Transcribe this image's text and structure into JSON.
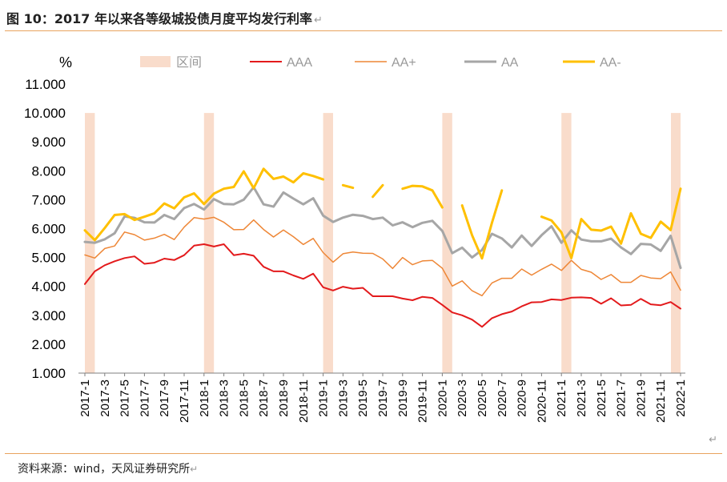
{
  "header": {
    "title": "图 10：2017 年以来各等级城投债月度平均发行利率",
    "return_mark": "↵"
  },
  "footer": {
    "source": "资料来源：wind，天风证券研究所",
    "return_mark": "↵",
    "corner_mark": "↵"
  },
  "chart_data": {
    "type": "line",
    "title": "2017 年以来各等级城投债月度平均发行利率",
    "ylabel": "%",
    "ylim": [
      1.0,
      11.0
    ],
    "yticks": [
      "11.000",
      "10.000",
      "9.000",
      "8.000",
      "7.000",
      "6.000",
      "5.000",
      "4.000",
      "3.000",
      "2.000",
      "1.000"
    ],
    "categories": [
      "2017-1",
      "2017-2",
      "2017-3",
      "2017-4",
      "2017-5",
      "2017-6",
      "2017-7",
      "2017-8",
      "2017-9",
      "2017-10",
      "2017-11",
      "2017-12",
      "2018-1",
      "2018-2",
      "2018-3",
      "2018-4",
      "2018-5",
      "2018-6",
      "2018-7",
      "2018-8",
      "2018-9",
      "2018-10",
      "2018-11",
      "2018-12",
      "2019-1",
      "2019-2",
      "2019-3",
      "2019-4",
      "2019-5",
      "2019-6",
      "2019-7",
      "2019-8",
      "2019-9",
      "2019-10",
      "2019-11",
      "2019-12",
      "2020-1",
      "2020-2",
      "2020-3",
      "2020-4",
      "2020-5",
      "2020-6",
      "2020-7",
      "2020-8",
      "2020-9",
      "2020-10",
      "2020-11",
      "2020-12",
      "2021-1",
      "2021-2",
      "2021-3",
      "2021-4",
      "2021-5",
      "2021-6",
      "2021-7",
      "2021-8",
      "2021-9",
      "2021-10",
      "2021-11",
      "2021-12",
      "2022-1"
    ],
    "xtick_labels": [
      "2017-1",
      "2017-3",
      "2017-5",
      "2017-7",
      "2017-9",
      "2017-11",
      "2018-1",
      "2018-3",
      "2018-5",
      "2018-7",
      "2018-9",
      "2018-11",
      "2019-1",
      "2019-3",
      "2019-5",
      "2019-7",
      "2019-9",
      "2019-11",
      "2020-1",
      "2020-3",
      "2020-5",
      "2020-7",
      "2020-9",
      "2020-11",
      "2021-1",
      "2021-3",
      "2021-5",
      "2021-7",
      "2021-9",
      "2021-11",
      "2022-1"
    ],
    "intervals": {
      "name": "区间",
      "color": "#f9dccb",
      "ranges": [
        [
          "2017-1",
          "2017-2"
        ],
        [
          "2018-1",
          "2018-2"
        ],
        [
          "2019-1",
          "2019-2"
        ],
        [
          "2020-1",
          "2020-2"
        ],
        [
          "2021-1",
          "2021-2"
        ],
        [
          "2022-1",
          "2022-1"
        ]
      ]
    },
    "series": [
      {
        "name": "AAA",
        "color": "#e31a1c",
        "width": 2,
        "values": [
          4.08,
          4.52,
          4.73,
          4.87,
          4.98,
          5.04,
          4.78,
          4.82,
          4.96,
          4.91,
          5.08,
          5.41,
          5.46,
          5.38,
          5.46,
          5.08,
          5.13,
          5.06,
          4.68,
          4.52,
          4.52,
          4.38,
          4.26,
          4.44,
          3.97,
          3.86,
          3.99,
          3.92,
          3.95,
          3.66,
          3.66,
          3.66,
          3.58,
          3.52,
          3.64,
          3.6,
          3.36,
          3.1,
          3.0,
          2.85,
          2.6,
          2.9,
          3.04,
          3.13,
          3.31,
          3.45,
          3.46,
          3.55,
          3.53,
          3.61,
          3.62,
          3.6,
          3.4,
          3.59,
          3.34,
          3.36,
          3.57,
          3.38,
          3.35,
          3.46,
          3.23
        ]
      },
      {
        "name": "AA+",
        "color": "#ee8737",
        "width": 1.5,
        "values": [
          5.09,
          4.98,
          5.31,
          5.4,
          5.88,
          5.79,
          5.6,
          5.67,
          5.8,
          5.62,
          6.05,
          6.38,
          6.33,
          6.39,
          6.22,
          5.96,
          5.97,
          6.3,
          5.97,
          5.71,
          5.95,
          5.72,
          5.45,
          5.66,
          5.17,
          4.84,
          5.13,
          5.19,
          5.15,
          5.14,
          4.95,
          4.62,
          5.0,
          4.75,
          4.88,
          4.9,
          4.63,
          4.01,
          4.19,
          3.85,
          3.68,
          4.12,
          4.28,
          4.28,
          4.6,
          4.39,
          4.59,
          4.77,
          4.55,
          4.9,
          4.59,
          4.49,
          4.24,
          4.41,
          4.14,
          4.14,
          4.38,
          4.29,
          4.27,
          4.5,
          3.87
        ]
      },
      {
        "name": "AA",
        "color": "#a6a6a6",
        "width": 3,
        "values": [
          5.54,
          5.51,
          5.63,
          5.84,
          6.42,
          6.37,
          6.22,
          6.21,
          6.47,
          6.33,
          6.71,
          6.85,
          6.66,
          7.02,
          6.85,
          6.84,
          7.0,
          7.43,
          6.84,
          6.76,
          7.25,
          7.04,
          6.84,
          7.05,
          6.45,
          6.23,
          6.38,
          6.48,
          6.44,
          6.33,
          6.38,
          6.11,
          6.22,
          6.05,
          6.2,
          6.27,
          5.92,
          5.15,
          5.34,
          5.0,
          5.26,
          5.82,
          5.66,
          5.35,
          5.76,
          5.4,
          5.77,
          6.08,
          5.51,
          5.94,
          5.62,
          5.56,
          5.56,
          5.65,
          5.35,
          5.12,
          5.47,
          5.45,
          5.23,
          5.75,
          4.64
        ]
      },
      {
        "name": "AA-",
        "color": "#ffc000",
        "width": 3,
        "values": [
          5.94,
          5.6,
          6.02,
          6.47,
          6.5,
          6.3,
          6.41,
          6.53,
          6.87,
          6.7,
          7.08,
          7.22,
          6.85,
          7.21,
          7.38,
          7.44,
          7.98,
          7.4,
          8.07,
          7.72,
          7.8,
          7.6,
          7.91,
          7.82,
          7.7,
          null,
          7.5,
          7.41,
          null,
          7.1,
          7.5,
          null,
          7.38,
          7.48,
          7.46,
          7.32,
          6.73,
          null,
          6.8,
          5.77,
          4.97,
          6.2,
          7.32,
          null,
          null,
          null,
          6.41,
          6.28,
          5.87,
          4.98,
          6.33,
          5.96,
          5.93,
          6.07,
          5.48,
          6.53,
          5.82,
          5.68,
          6.24,
          5.95,
          7.38
        ]
      }
    ],
    "legend_position": "top"
  }
}
